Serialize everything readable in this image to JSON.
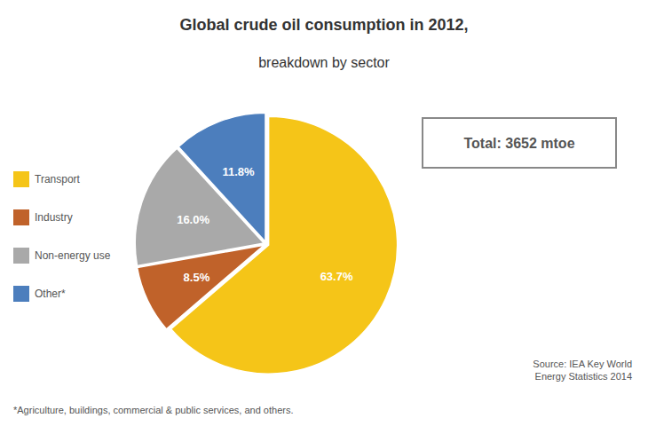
{
  "chart_data": {
    "type": "pie",
    "title": "Global crude oil consumption in 2012,",
    "subtitle": "breakdown by sector",
    "categories": [
      "Transport",
      "Industry",
      "Non-energy use",
      "Other*"
    ],
    "values": [
      63.7,
      8.5,
      16.0,
      11.8
    ],
    "value_labels": [
      "63.7%",
      "8.5%",
      "16.0%",
      "11.8%"
    ],
    "colors": [
      "#F5C518",
      "#C0622A",
      "#A9A9A9",
      "#4C7EBD"
    ],
    "data_labels": true,
    "legend": "left",
    "annotations": [
      "Total: 3652 mtoe",
      "Source: IEA Key World\nEnergy Statistics 2014",
      "*Agriculture, buildings, commercial & public services, and others."
    ]
  }
}
